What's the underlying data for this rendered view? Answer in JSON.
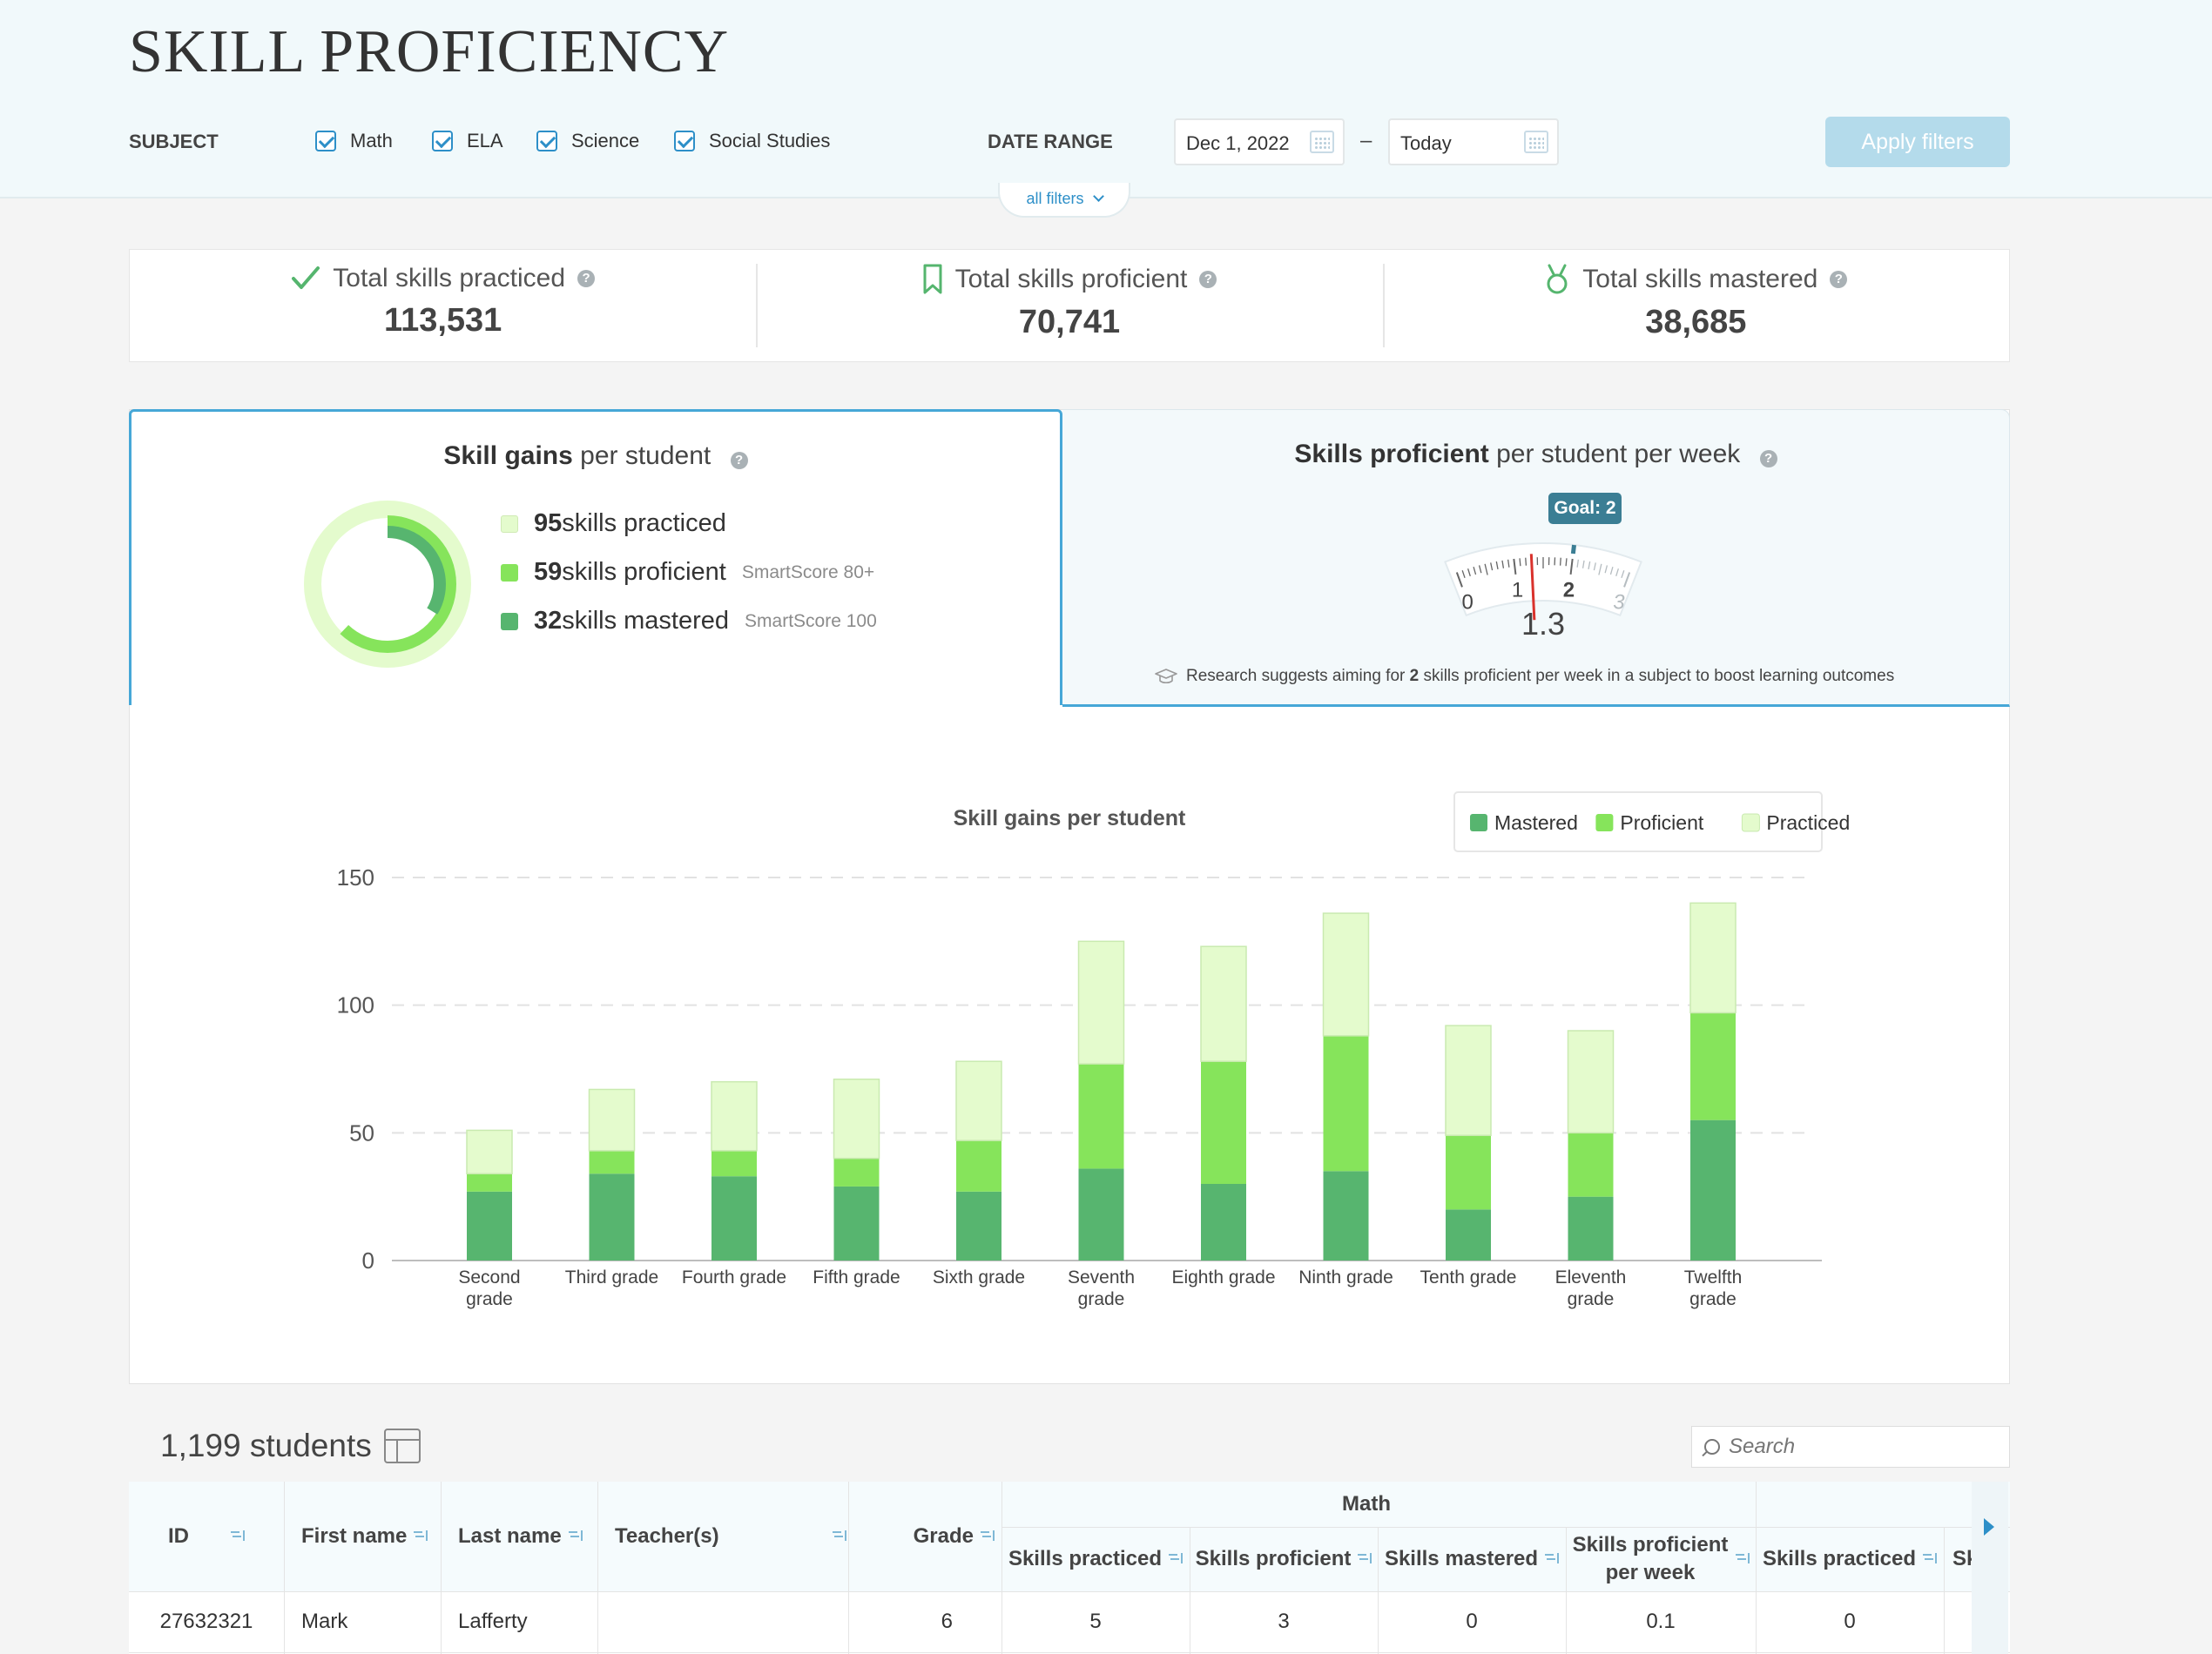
{
  "page": {
    "title": "SKILL PROFICIENCY"
  },
  "filters": {
    "subject_label": "SUBJECT",
    "subjects": [
      {
        "label": "Math",
        "checked": true
      },
      {
        "label": "ELA",
        "checked": true
      },
      {
        "label": "Science",
        "checked": true
      },
      {
        "label": "Social Studies",
        "checked": true
      }
    ],
    "date_range_label": "DATE RANGE",
    "date_from": "Dec 1, 2022",
    "date_separator": "–",
    "date_to": "Today",
    "apply_label": "Apply filters",
    "all_filters_label": "all filters"
  },
  "stats": [
    {
      "label": "Total skills practiced",
      "value": "113,531",
      "icon": "checkmark-icon"
    },
    {
      "label": "Total skills proficient",
      "value": "70,741",
      "icon": "bookmark-icon"
    },
    {
      "label": "Total skills mastered",
      "value": "38,685",
      "icon": "medal-icon"
    }
  ],
  "gains_panel": {
    "title_bold": "Skill gains",
    "title_rest": " per student",
    "rows": [
      {
        "count": "95",
        "text": " skills practiced",
        "sub": ""
      },
      {
        "count": "59",
        "text": " skills proficient",
        "sub": "SmartScore 80+"
      },
      {
        "count": "32",
        "text": " skills mastered",
        "sub": "SmartScore 100"
      }
    ],
    "donut": {
      "practiced": 95,
      "proficient": 59,
      "mastered": 32
    }
  },
  "weekly_panel": {
    "title_bold": "Skills proficient",
    "title_rest": " per student per week",
    "goal_label": "Goal: 2",
    "goal": 2,
    "value": 1.3,
    "value_text": "1.3",
    "gauge_ticks": [
      "0",
      "1",
      "2",
      "3"
    ],
    "research_pre": "Research suggests aiming for ",
    "research_num": "2",
    "research_post": " skills proficient per week in a subject to boost learning outcomes"
  },
  "colors": {
    "mastered": "#57b56f",
    "proficient": "#86e45b",
    "practiced": "#e4fbcd",
    "accent": "#2d8fc8"
  },
  "chart_data": {
    "type": "bar",
    "stacked": true,
    "title": "Skill gains per student",
    "legend": [
      "Mastered",
      "Proficient",
      "Practiced"
    ],
    "legend_position": "top-right",
    "categories": [
      "Second grade",
      "Third grade",
      "Fourth grade",
      "Fifth grade",
      "Sixth grade",
      "Seventh grade",
      "Eighth grade",
      "Ninth grade",
      "Tenth grade",
      "Eleventh grade",
      "Twelfth grade"
    ],
    "category_lines": [
      [
        "Second",
        "grade"
      ],
      [
        "Third grade"
      ],
      [
        "Fourth grade"
      ],
      [
        "Fifth grade"
      ],
      [
        "Sixth grade"
      ],
      [
        "Seventh",
        "grade"
      ],
      [
        "Eighth grade"
      ],
      [
        "Ninth grade"
      ],
      [
        "Tenth grade"
      ],
      [
        "Eleventh",
        "grade"
      ],
      [
        "Twelfth",
        "grade"
      ]
    ],
    "series": [
      {
        "name": "Mastered",
        "values": [
          27,
          34,
          33,
          29,
          27,
          36,
          30,
          35,
          20,
          25,
          55
        ]
      },
      {
        "name": "Proficient",
        "values": [
          7,
          9,
          10,
          11,
          20,
          41,
          48,
          53,
          29,
          25,
          42
        ]
      },
      {
        "name": "Practiced",
        "values": [
          17,
          24,
          27,
          31,
          31,
          48,
          45,
          48,
          43,
          40,
          43
        ]
      }
    ],
    "yticks": [
      0,
      50,
      100,
      150
    ],
    "ylim": [
      0,
      150
    ],
    "grid": true
  },
  "table": {
    "count_label": "1,199 students",
    "search_placeholder": "Search",
    "group_label": "Math",
    "columns": [
      "ID",
      "First name",
      "Last name",
      "Teacher(s)",
      "Grade",
      "Skills practiced",
      "Skills proficient",
      "Skills mastered",
      "Skills proficient per week",
      "Skills practiced",
      "Skills p"
    ],
    "rows": [
      [
        "27632321",
        "Mark",
        "Lafferty",
        "",
        "6",
        "5",
        "3",
        "0",
        "0.1",
        "0",
        ""
      ]
    ]
  }
}
